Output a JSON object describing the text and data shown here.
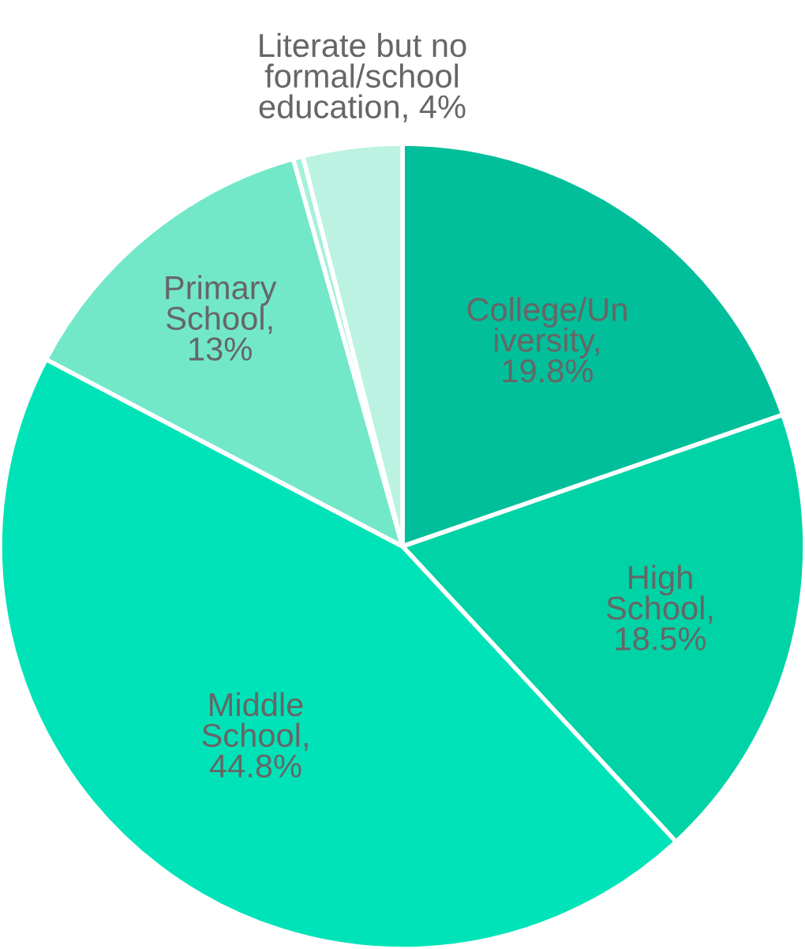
{
  "chart_data": {
    "type": "pie",
    "categories": [
      "College/Un\niversity",
      "High\nSchool",
      "Middle\nSchool",
      "Primary\nSchool",
      null,
      "Literate but no\nformal/school\neducation"
    ],
    "values": [
      19.8,
      18.5,
      44.8,
      13,
      0.4,
      4
    ],
    "value_labels": [
      ",\n19.8%",
      ",\n18.5%",
      ",\n44.8%",
      ",\n13%",
      null,
      ", 4%"
    ],
    "colors": [
      "#00bf9a",
      "#00d3a6",
      "#00e3b8",
      "#72e8c9",
      "#a6f0dc",
      "#bcf2e2"
    ]
  }
}
